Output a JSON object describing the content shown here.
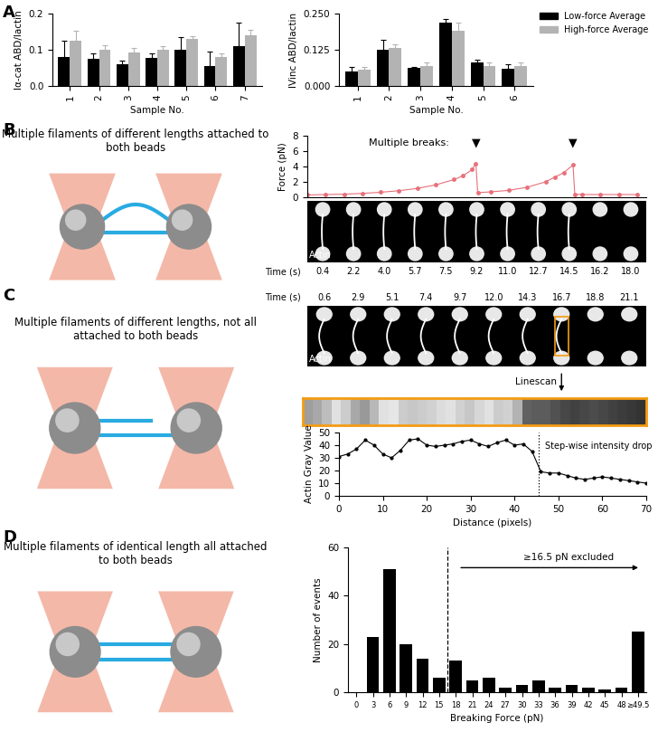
{
  "panels": [
    "A",
    "B",
    "C",
    "D"
  ],
  "chart_data": [
    {
      "type": "bar",
      "categories": [
        "1",
        "2",
        "3",
        "4",
        "5",
        "6",
        "7"
      ],
      "xlabel": "Sample No.",
      "ylabel": "Iα-cat ABD/Iactin",
      "ylim": [
        0,
        0.2
      ],
      "yticks": [
        {
          "value": 0,
          "label": "0.0"
        },
        0.1,
        0.2
      ],
      "series": [
        {
          "name": "Low-force Average",
          "color": "#000000",
          "values": [
            0.08,
            0.075,
            0.06,
            0.078,
            0.1,
            0.055,
            0.11
          ],
          "errors": [
            0.045,
            0.015,
            0.01,
            0.012,
            0.035,
            0.04,
            0.065
          ]
        },
        {
          "name": "High-force Average",
          "color": "#b3b3b3",
          "values": [
            0.125,
            0.1,
            0.092,
            0.1,
            0.13,
            0.08,
            0.14
          ],
          "errors": [
            0.028,
            0.012,
            0.012,
            0.01,
            0.008,
            0.01,
            0.015
          ]
        }
      ]
    },
    {
      "type": "bar",
      "categories": [
        "1",
        "2",
        "3",
        "4",
        "5",
        "6"
      ],
      "xlabel": "Sample No.",
      "ylabel": "IVinc ABD/Iactin",
      "ylim": [
        0,
        0.25
      ],
      "yticks": [
        {
          "value": 0,
          "label": "0.000"
        },
        {
          "value": 0.125,
          "label": "0.125"
        },
        {
          "value": 0.25,
          "label": "0.250"
        }
      ],
      "legend": "upper right",
      "series": [
        {
          "name": "Low-force Average",
          "color": "#000000",
          "values": [
            0.05,
            0.125,
            0.062,
            0.22,
            0.08,
            0.06
          ],
          "errors": [
            0.015,
            0.035,
            0.005,
            0.01,
            0.01,
            0.015
          ]
        },
        {
          "name": "High-force Average",
          "color": "#b3b3b3",
          "values": [
            0.055,
            0.13,
            0.07,
            0.19,
            0.07,
            0.068
          ],
          "errors": [
            0.012,
            0.015,
            0.01,
            0.03,
            0.01,
            0.012
          ]
        }
      ]
    },
    {
      "type": "line",
      "ylabel": "Force (pN)",
      "color": "#e8707a",
      "marker": "o",
      "tick_labels": "y",
      "x": [
        0,
        1,
        2,
        3,
        4,
        5,
        6,
        7,
        8,
        8.5,
        9,
        9.2,
        9.3,
        10,
        11,
        12,
        13,
        13.5,
        14,
        14.5,
        14.6,
        15,
        16,
        17,
        18
      ],
      "values": [
        0.3,
        0.35,
        0.4,
        0.5,
        0.65,
        0.85,
        1.15,
        1.6,
        2.3,
        2.8,
        3.6,
        4.4,
        0.6,
        0.7,
        0.9,
        1.3,
        2.0,
        2.6,
        3.2,
        4.2,
        0.4,
        0.35,
        0.35,
        0.35,
        0.35
      ],
      "xlim": [
        0,
        18.5
      ],
      "ylim": [
        0,
        8
      ],
      "yticks": [
        0,
        2,
        4,
        6,
        8
      ],
      "annotations": [
        {
          "text": "Multiple breaks:"
        },
        {
          "text": "▼",
          "x": 9.2
        },
        {
          "text": "▼",
          "x": 14.5
        }
      ]
    },
    {
      "type": "line",
      "xlabel": "Distance (pixels)",
      "ylabel": "Actin Gray Value",
      "color": "#000000",
      "marker": "o",
      "x": [
        0,
        2,
        4,
        6,
        8,
        10,
        12,
        14,
        16,
        18,
        20,
        22,
        24,
        26,
        28,
        30,
        32,
        34,
        36,
        38,
        40,
        42,
        44,
        46,
        48,
        50,
        52,
        54,
        56,
        58,
        60,
        62,
        64,
        66,
        68,
        70
      ],
      "values": [
        31,
        33,
        37,
        44,
        40,
        33,
        30,
        36,
        44,
        45,
        40,
        39,
        40,
        41,
        43,
        44,
        41,
        39,
        42,
        44,
        40,
        41,
        35,
        19,
        18,
        18,
        16,
        14,
        13,
        14,
        15,
        14,
        13,
        12,
        11,
        10
      ],
      "xlim": [
        0,
        70
      ],
      "xticks": [
        0,
        10,
        20,
        30,
        40,
        50,
        60,
        70
      ],
      "ylim": [
        0,
        50
      ],
      "yticks": [
        0,
        10,
        20,
        30,
        40,
        50
      ],
      "annotations": [
        {
          "text": "Step-wise intensity drop",
          "x": 45.5
        }
      ]
    },
    {
      "type": "bar",
      "xlabel": "Breaking Force (pN)",
      "ylabel": "Number of events",
      "color": "#000000",
      "x": [
        3,
        6,
        9,
        12,
        15,
        18,
        21,
        24,
        27,
        30,
        33,
        36,
        39,
        42,
        45,
        48,
        51
      ],
      "values": [
        23,
        51,
        20,
        14,
        6,
        13,
        5,
        6,
        2,
        3,
        5,
        2,
        3,
        2,
        1,
        2,
        25
      ],
      "xlim": [
        -1.5,
        52.5
      ],
      "xticks": [
        0,
        3,
        6,
        9,
        12,
        15,
        18,
        21,
        24,
        27,
        30,
        33,
        36,
        39,
        42,
        45,
        48,
        {
          "value": 51,
          "label": "≥49.5"
        }
      ],
      "ylim": [
        0,
        60
      ],
      "yticks": [
        0,
        20,
        40,
        60
      ],
      "annotations": [
        {
          "text": "≥16.5 pN excluded",
          "x": 16.5
        }
      ]
    }
  ],
  "schematics": {
    "B": "Multiple filaments of different lengths attached to both beads",
    "C": "Multiple filaments of different lengths, not all attached to both beads",
    "D": "Multiple filaments of identical length all attached to both beads"
  },
  "micrographs": {
    "B": {
      "label": "Actin",
      "time_label": "Time (s)",
      "times": [
        "0.4",
        "2.2",
        "4.0",
        "5.7",
        "7.5",
        "9.2",
        "11.0",
        "12.7",
        "14.5",
        "16.2",
        "18.0"
      ]
    },
    "C": {
      "label": "Actin",
      "time_label": "Time (s)",
      "linescan_label": "Linescan",
      "times": [
        "0.6",
        "2.9",
        "5.1",
        "7.4",
        "9.7",
        "12.0",
        "14.3",
        "16.7",
        "18.8",
        "21.1"
      ]
    }
  }
}
